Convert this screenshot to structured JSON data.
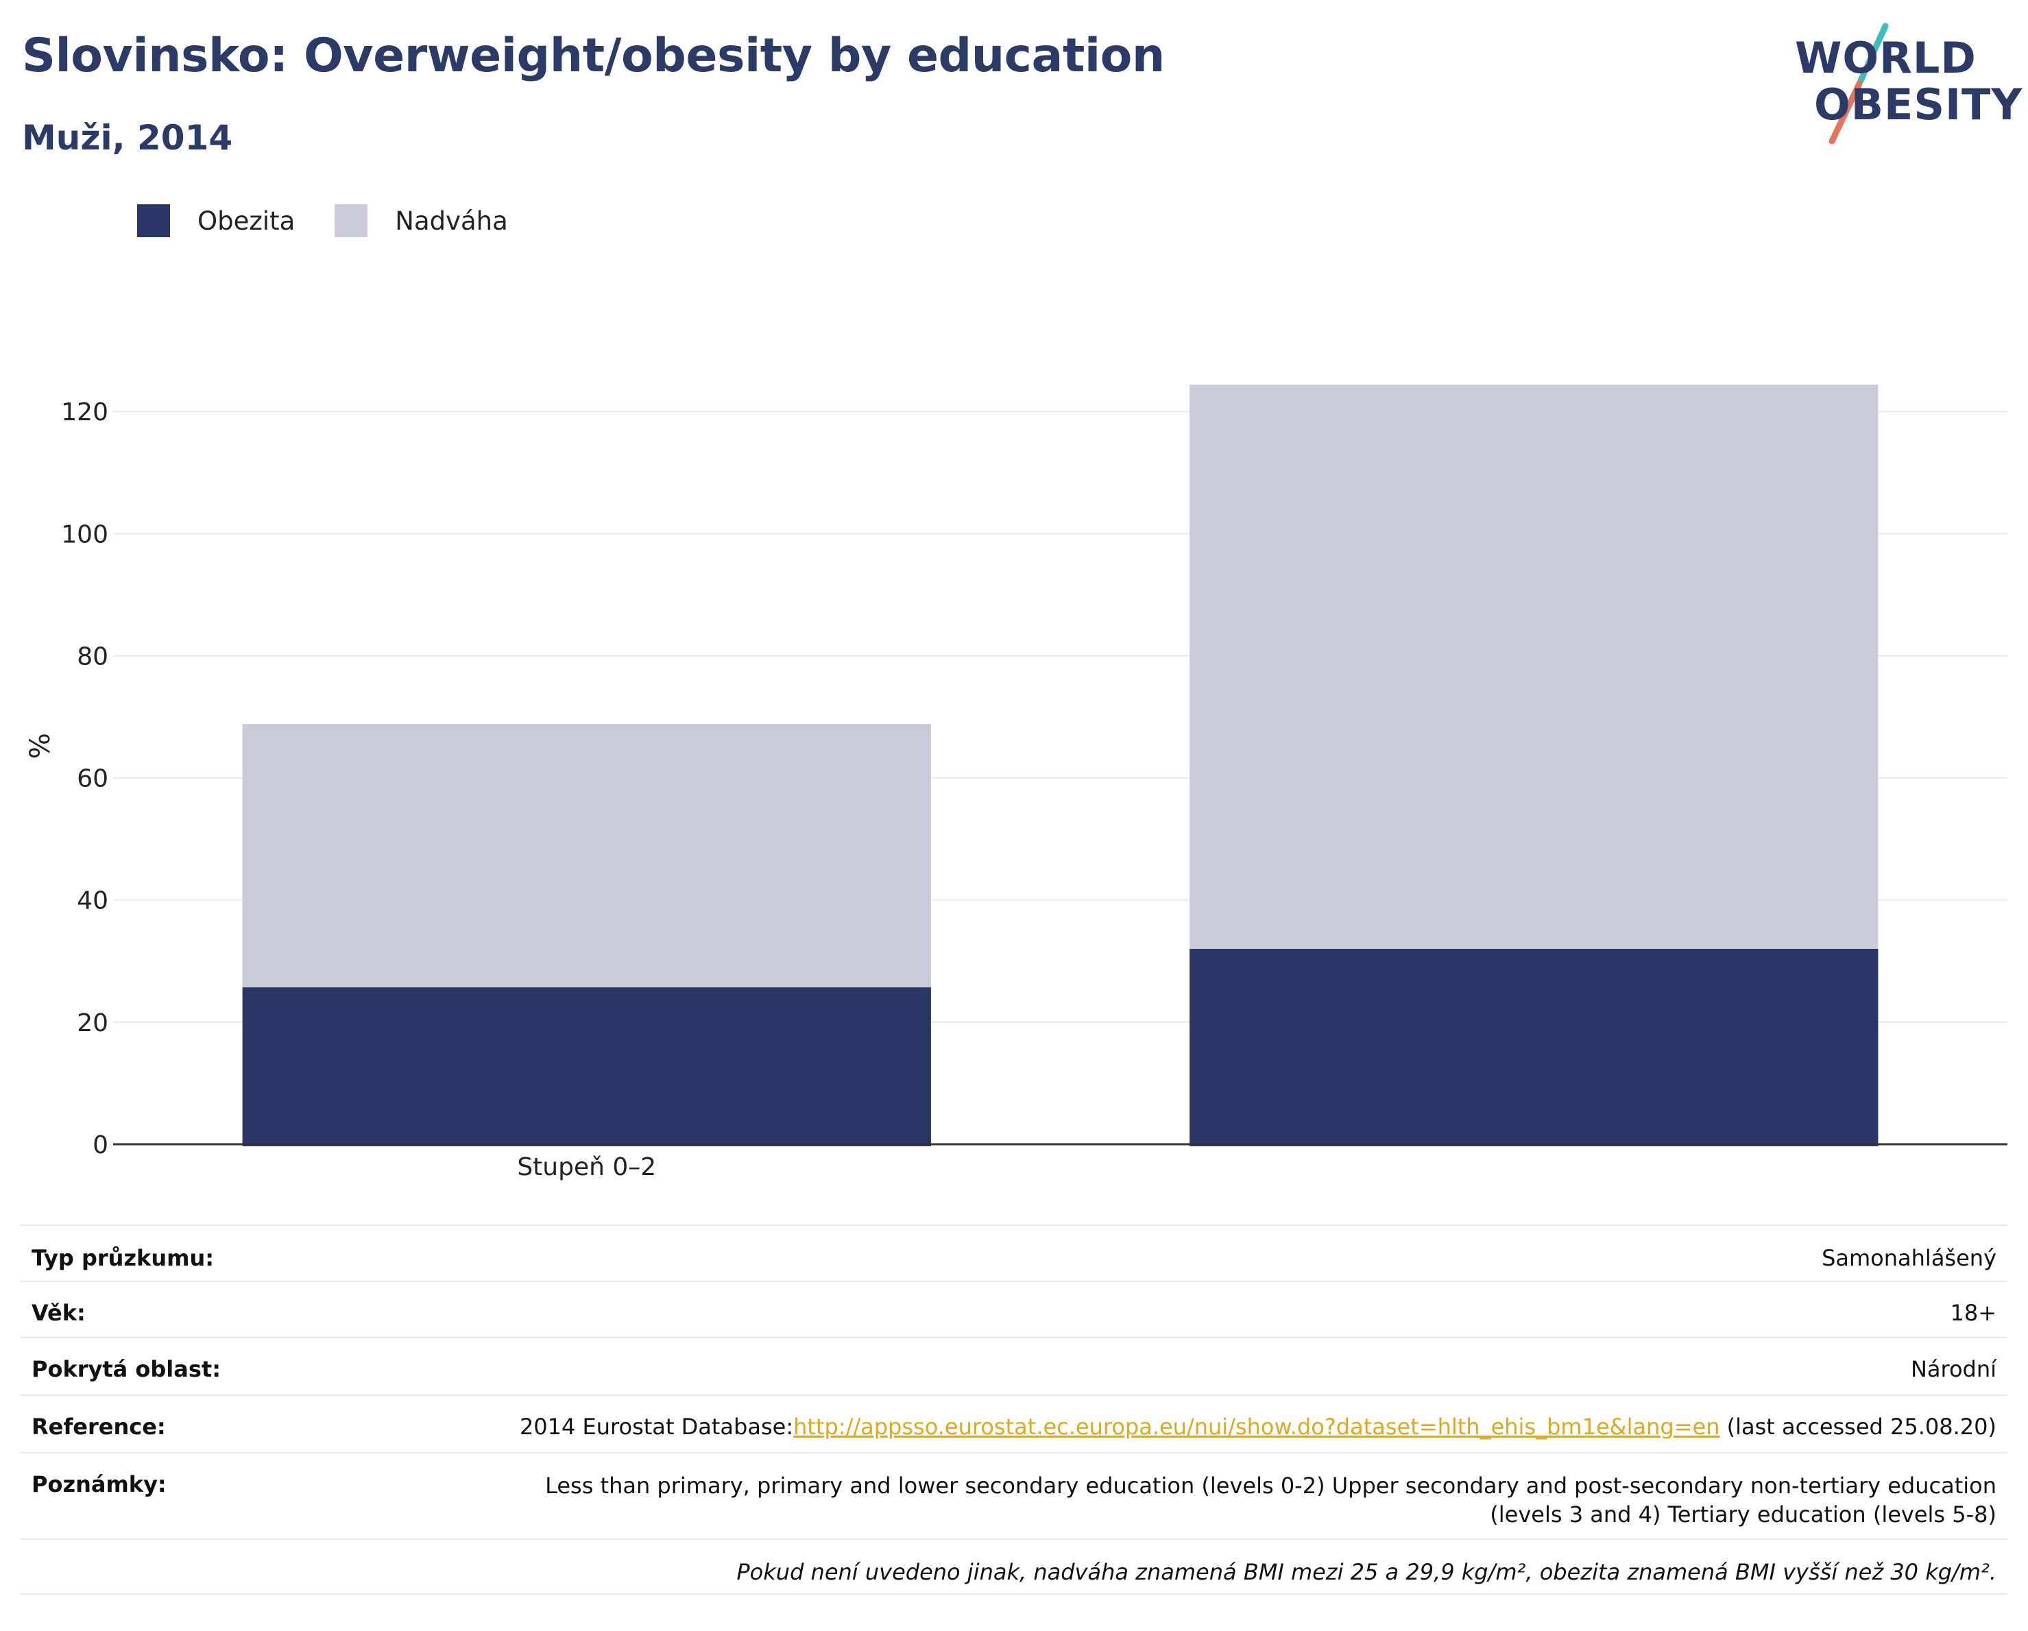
{
  "header": {
    "title": "Slovinsko: Overweight/obesity by education",
    "subtitle": "Muži, 2014"
  },
  "logo": {
    "line1": "WORLD",
    "line2": "OBESITY",
    "colors": {
      "text": "#2b3a67",
      "accent_top": "#3bbfb8",
      "accent_bottom": "#e8735a"
    }
  },
  "legend": {
    "items": [
      {
        "label": "Obezita",
        "color": "#2a3665"
      },
      {
        "label": "Nadváha",
        "color": "#c9ccd8"
      }
    ]
  },
  "chart_data": {
    "type": "bar",
    "stacked": true,
    "categories": [
      "Stupeň 0–2",
      ""
    ],
    "series": [
      {
        "name": "Obezita",
        "color": "#2a3665",
        "values": [
          25.7,
          32.0
        ]
      },
      {
        "name": "Nadváha",
        "color": "#c9ccd8",
        "values": [
          43.1,
          92.4
        ]
      }
    ],
    "ylabel": "%",
    "ylim": [
      0,
      124.4
    ],
    "yticks": [
      0,
      20,
      40,
      60,
      80,
      100,
      120
    ],
    "grid": true,
    "legend_position": "top-left"
  },
  "info": {
    "rows": [
      {
        "key": "Typ průzkumu:",
        "value": "Samonahlášený"
      },
      {
        "key": "Věk:",
        "value": "18+"
      },
      {
        "key": "Pokrytá oblast:",
        "value": "Národní"
      },
      {
        "key": "Reference:",
        "value_prefix": "2014 Eurostat Database:",
        "link": "http://appsso.eurostat.ec.europa.eu/nui/show.do?dataset=hlth_ehis_bm1e&lang=en",
        "value_suffix": " (last accessed 25.08.20)"
      },
      {
        "key": "Poznámky:",
        "value_line1": "Less than primary, primary and lower secondary education (levels 0-2) Upper secondary and post-secondary non-tertiary education",
        "value_line2": "(levels 3 and 4) Tertiary education (levels 5-8)"
      }
    ],
    "footnote": "Pokud není uvedeno jinak, nadváha znamená BMI mezi 25 a 29,9 kg/m², obezita znamená BMI vyšší než 30 kg/m²."
  }
}
